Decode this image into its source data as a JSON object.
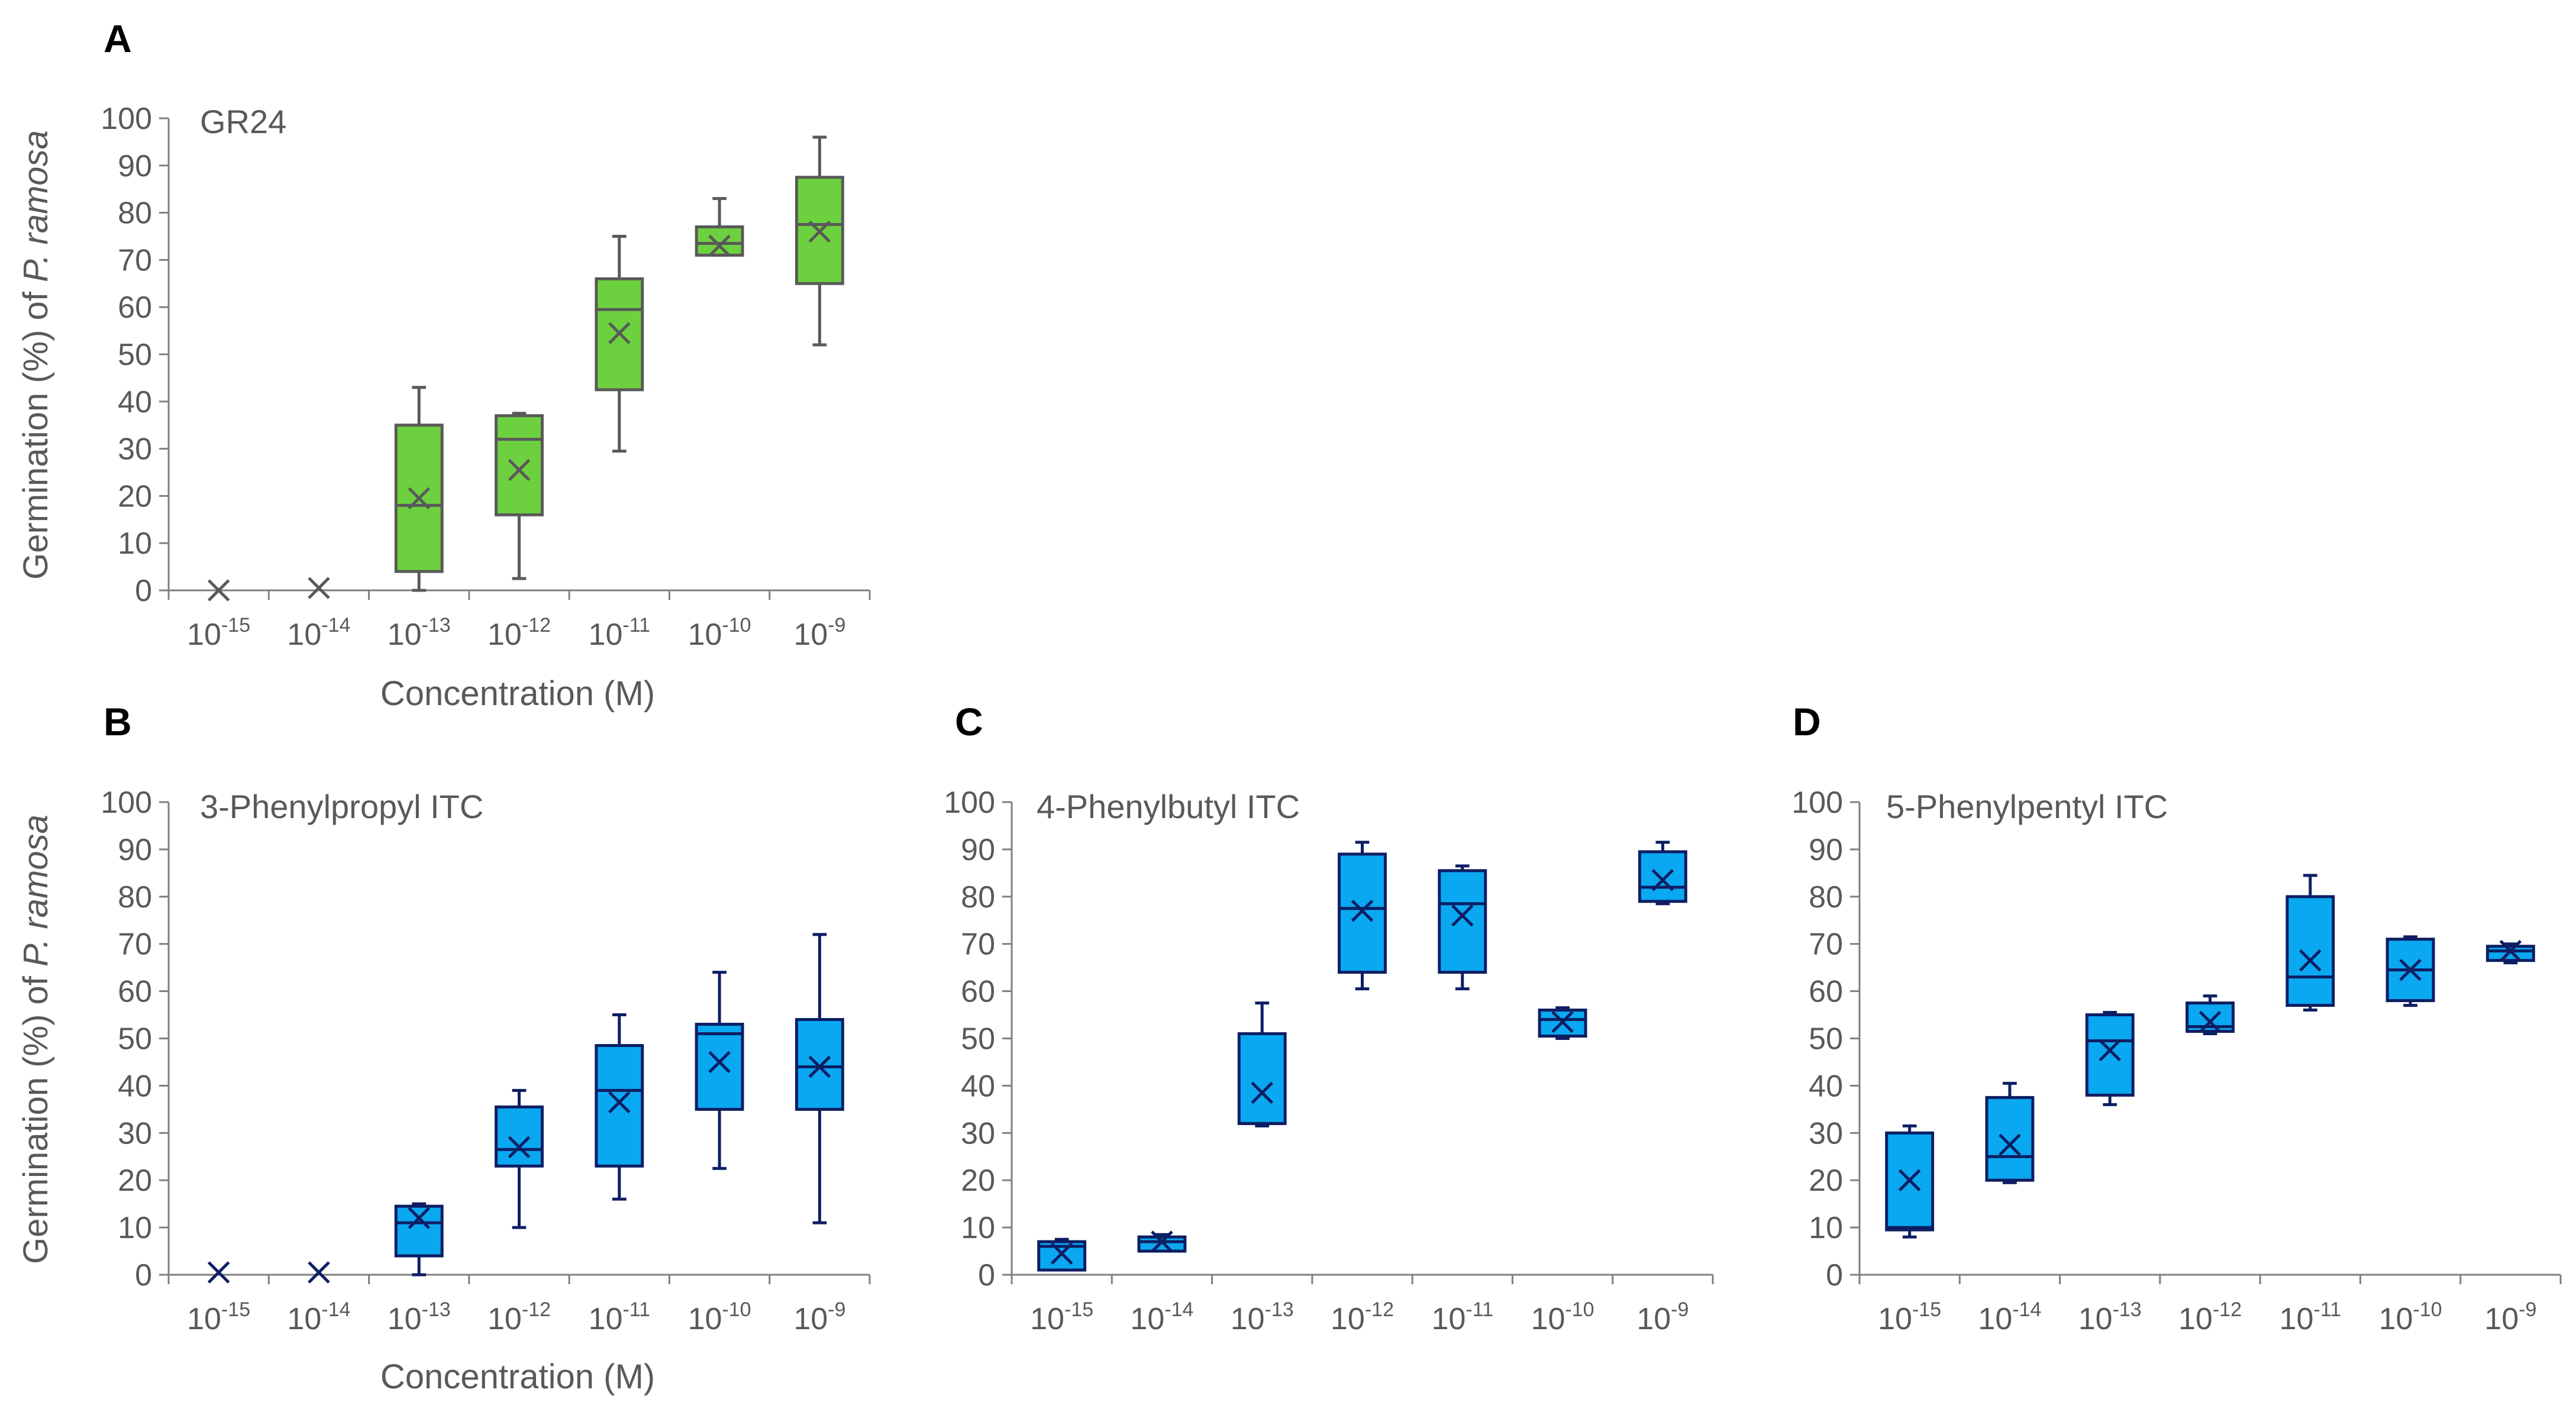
{
  "colors": {
    "green_fill": "#6dd13f",
    "green_stroke": "#595959",
    "blue_fill": "#0aa8f0",
    "blue_stroke": "#0d1e63",
    "axis": "#7f7f7f"
  },
  "y_label_prefix": "Germination (%) of ",
  "y_label_species": "P. ramosa",
  "x_label": "Concentration (M)",
  "chart_data": [
    {
      "panel": "A",
      "type": "box",
      "title": "GR24",
      "ylim": [
        0,
        100
      ],
      "yticks": [
        0,
        10,
        20,
        30,
        40,
        50,
        60,
        70,
        80,
        90,
        100
      ],
      "categories": [
        {
          "base": "10",
          "exp": "-15"
        },
        {
          "base": "10",
          "exp": "-14"
        },
        {
          "base": "10",
          "exp": "-13"
        },
        {
          "base": "10",
          "exp": "-12"
        },
        {
          "base": "10",
          "exp": "-11"
        },
        {
          "base": "10",
          "exp": "-10"
        },
        {
          "base": "10",
          "exp": "-9"
        }
      ],
      "series": [
        {
          "min": 0,
          "q1": 0,
          "median": 0,
          "q3": 0,
          "max": 0,
          "mean": 0
        },
        {
          "min": 0,
          "q1": 0,
          "median": 0,
          "q3": 0,
          "max": 0,
          "mean": 0.5
        },
        {
          "min": 0,
          "q1": 4,
          "median": 18,
          "q3": 35,
          "max": 43,
          "mean": 19.5
        },
        {
          "min": 2.5,
          "q1": 16,
          "median": 32,
          "q3": 37,
          "max": 37.5,
          "mean": 25.5
        },
        {
          "min": 29.5,
          "q1": 42.5,
          "median": 59.5,
          "q3": 66,
          "max": 75,
          "mean": 54.5
        },
        {
          "min": 71,
          "q1": 71,
          "median": 73.5,
          "q3": 77,
          "max": 83,
          "mean": 73
        },
        {
          "min": 52,
          "q1": 65,
          "median": 77.5,
          "q3": 87.5,
          "max": 96,
          "mean": 76
        }
      ]
    },
    {
      "panel": "B",
      "type": "box",
      "title": "3-Phenylpropyl ITC",
      "ylim": [
        0,
        100
      ],
      "yticks": [
        0,
        10,
        20,
        30,
        40,
        50,
        60,
        70,
        80,
        90,
        100
      ],
      "categories": [
        {
          "base": "10",
          "exp": "-15"
        },
        {
          "base": "10",
          "exp": "-14"
        },
        {
          "base": "10",
          "exp": "-13"
        },
        {
          "base": "10",
          "exp": "-12"
        },
        {
          "base": "10",
          "exp": "-11"
        },
        {
          "base": "10",
          "exp": "-10"
        },
        {
          "base": "10",
          "exp": "-9"
        }
      ],
      "series": [
        {
          "min": 0,
          "q1": 0,
          "median": 0,
          "q3": 0,
          "max": 0,
          "mean": 0.5
        },
        {
          "min": 0,
          "q1": 0,
          "median": 0,
          "q3": 0,
          "max": 0,
          "mean": 0.5
        },
        {
          "min": 0,
          "q1": 4,
          "median": 11,
          "q3": 14.5,
          "max": 15,
          "mean": 12
        },
        {
          "min": 10,
          "q1": 23,
          "median": 26.5,
          "q3": 35.5,
          "max": 39,
          "mean": 27
        },
        {
          "min": 16,
          "q1": 23,
          "median": 39,
          "q3": 48.5,
          "max": 55,
          "mean": 36.5
        },
        {
          "min": 22.5,
          "q1": 35,
          "median": 51,
          "q3": 53,
          "max": 64,
          "mean": 45
        },
        {
          "min": 11,
          "q1": 35,
          "median": 44,
          "q3": 54,
          "max": 72,
          "mean": 44
        }
      ]
    },
    {
      "panel": "C",
      "type": "box",
      "title": "4-Phenylbutyl ITC",
      "ylim": [
        0,
        100
      ],
      "yticks": [
        0,
        10,
        20,
        30,
        40,
        50,
        60,
        70,
        80,
        90,
        100
      ],
      "categories": [
        {
          "base": "10",
          "exp": "-15"
        },
        {
          "base": "10",
          "exp": "-14"
        },
        {
          "base": "10",
          "exp": "-13"
        },
        {
          "base": "10",
          "exp": "-12"
        },
        {
          "base": "10",
          "exp": "-11"
        },
        {
          "base": "10",
          "exp": "-10"
        },
        {
          "base": "10",
          "exp": "-9"
        }
      ],
      "series": [
        {
          "min": 1,
          "q1": 1,
          "median": 6,
          "q3": 7,
          "max": 7.5,
          "mean": 4.5
        },
        {
          "min": 5,
          "q1": 5,
          "median": 7,
          "q3": 8,
          "max": 8.5,
          "mean": 7
        },
        {
          "min": 31.5,
          "q1": 32,
          "median": 32,
          "q3": 51,
          "max": 57.5,
          "mean": 38.5
        },
        {
          "min": 60.5,
          "q1": 64,
          "median": 77.5,
          "q3": 89,
          "max": 91.5,
          "mean": 77
        },
        {
          "min": 60.5,
          "q1": 64,
          "median": 78.5,
          "q3": 85.5,
          "max": 86.5,
          "mean": 76
        },
        {
          "min": 50,
          "q1": 50.5,
          "median": 54,
          "q3": 56,
          "max": 56.5,
          "mean": 53.5
        },
        {
          "min": 78.5,
          "q1": 79,
          "median": 82,
          "q3": 89.5,
          "max": 91.5,
          "mean": 83.5
        }
      ]
    },
    {
      "panel": "D",
      "type": "box",
      "title": "5-Phenylpentyl ITC",
      "ylim": [
        0,
        100
      ],
      "yticks": [
        0,
        10,
        20,
        30,
        40,
        50,
        60,
        70,
        80,
        90,
        100
      ],
      "categories": [
        {
          "base": "10",
          "exp": "-15"
        },
        {
          "base": "10",
          "exp": "-14"
        },
        {
          "base": "10",
          "exp": "-13"
        },
        {
          "base": "10",
          "exp": "-12"
        },
        {
          "base": "10",
          "exp": "-11"
        },
        {
          "base": "10",
          "exp": "-10"
        },
        {
          "base": "10",
          "exp": "-9"
        }
      ],
      "series": [
        {
          "min": 8,
          "q1": 9.5,
          "median": 10,
          "q3": 30,
          "max": 31.5,
          "mean": 20
        },
        {
          "min": 19.5,
          "q1": 20,
          "median": 25,
          "q3": 37.5,
          "max": 40.5,
          "mean": 27.5
        },
        {
          "min": 36,
          "q1": 38,
          "median": 49.5,
          "q3": 55,
          "max": 55.5,
          "mean": 47.5
        },
        {
          "min": 51,
          "q1": 51.5,
          "median": 52.5,
          "q3": 57.5,
          "max": 59,
          "mean": 53.5
        },
        {
          "min": 56,
          "q1": 57,
          "median": 63,
          "q3": 80,
          "max": 84.5,
          "mean": 66.5
        },
        {
          "min": 57,
          "q1": 58,
          "median": 64.5,
          "q3": 71,
          "max": 71.5,
          "mean": 64.5
        },
        {
          "min": 66,
          "q1": 66.5,
          "median": 68.5,
          "q3": 69.5,
          "max": 70,
          "mean": 68.5
        }
      ]
    }
  ]
}
